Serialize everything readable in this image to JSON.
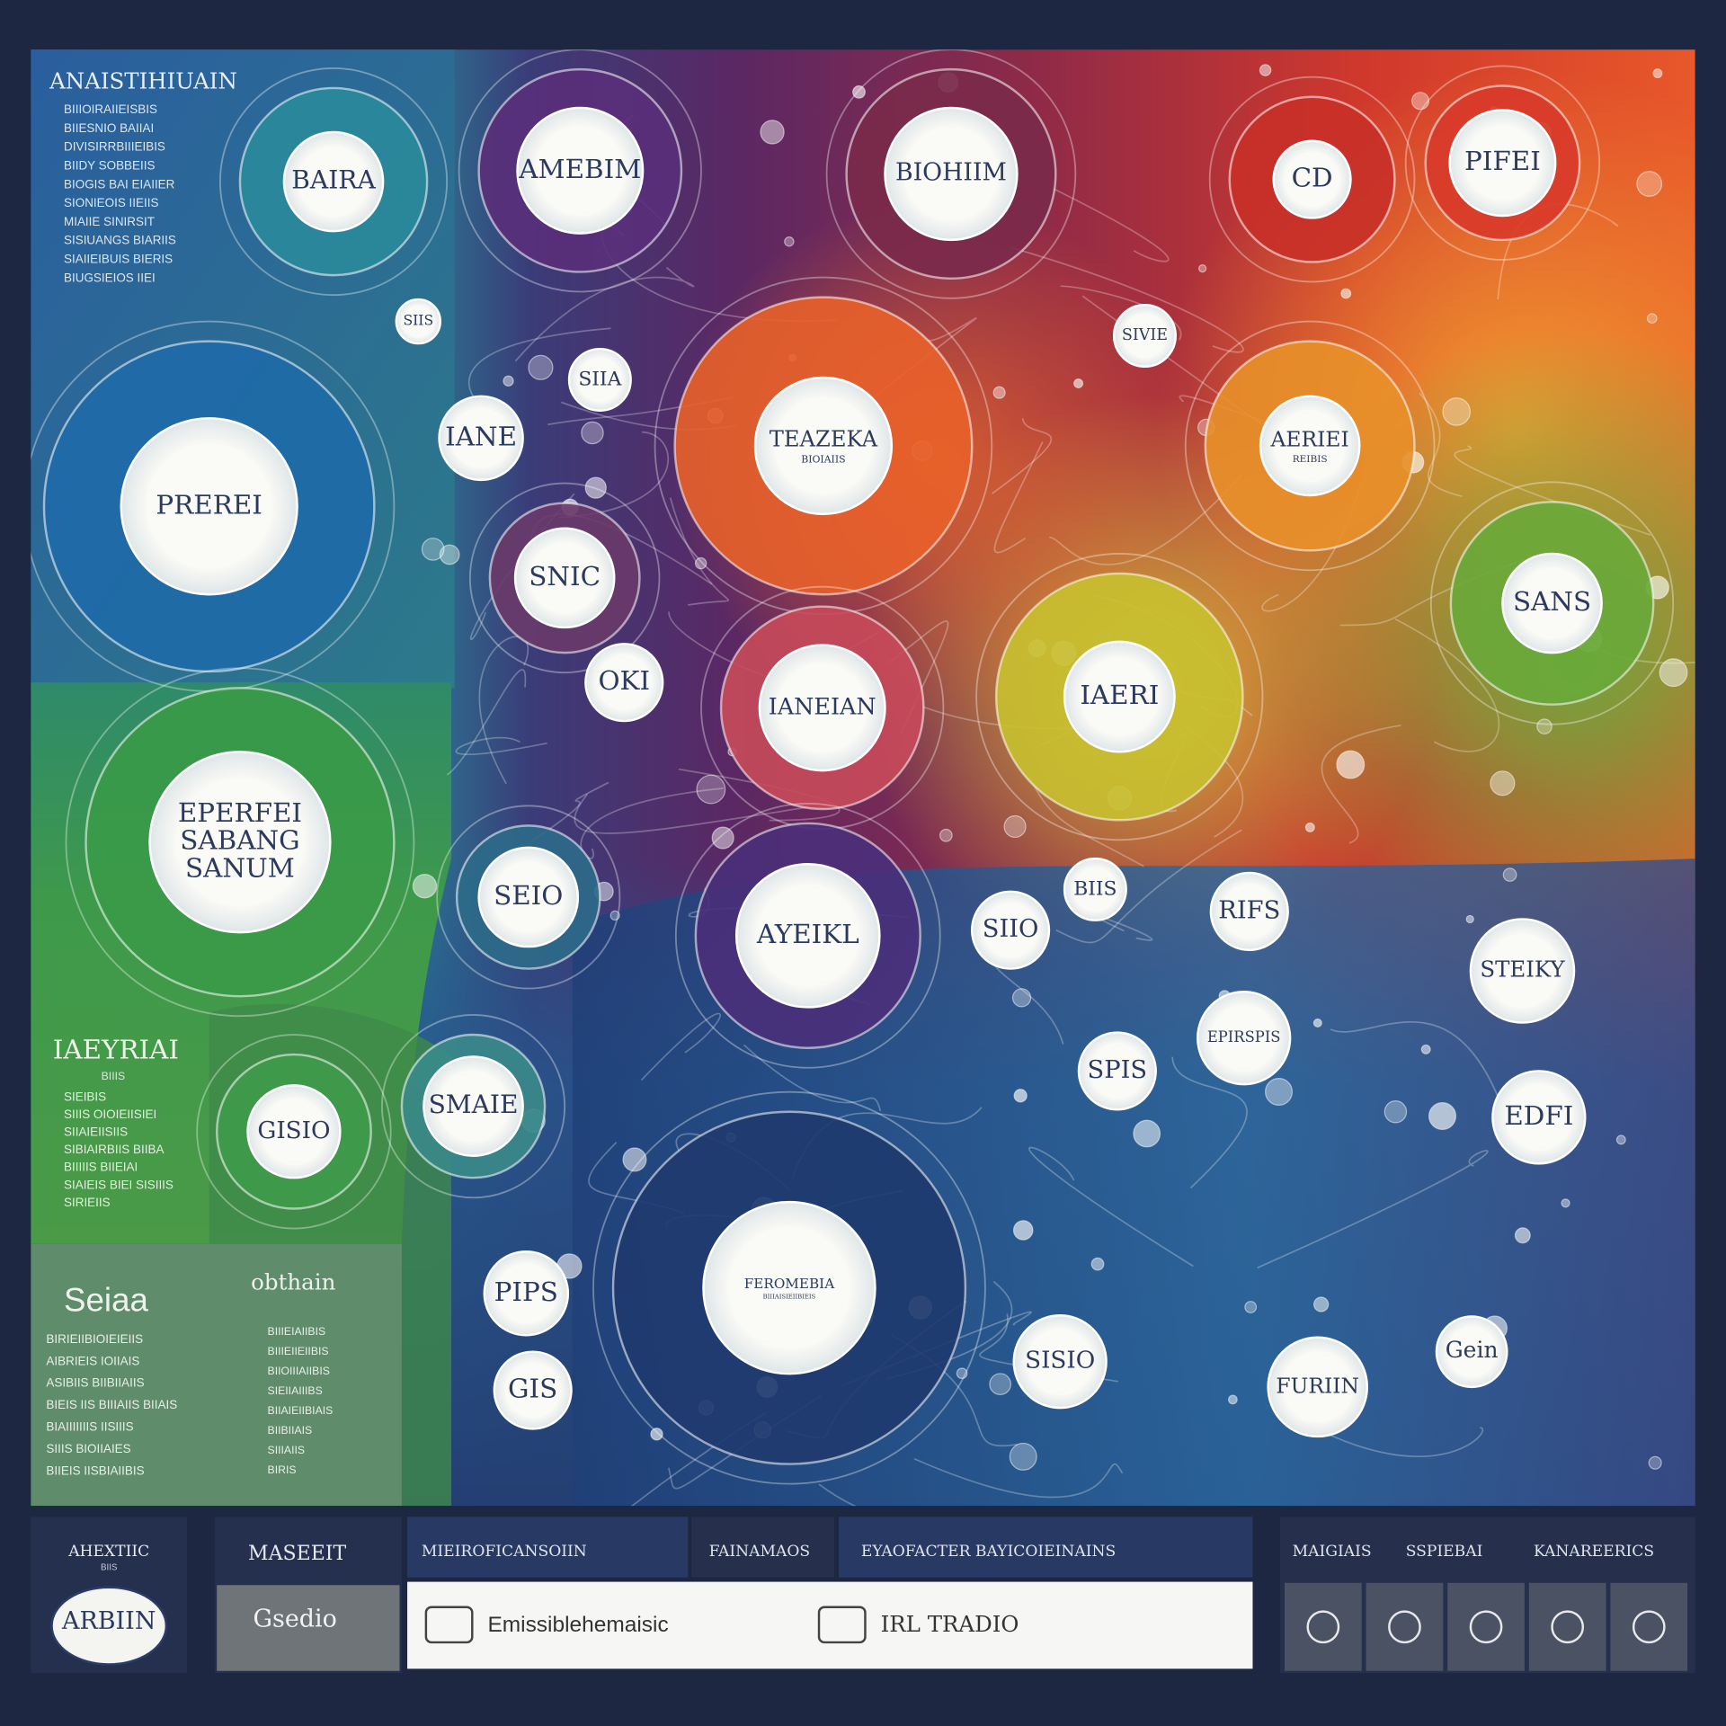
{
  "header": {
    "title": "ANAISTIHIUAIN",
    "items": [
      "BIIIOIRAIIEISBIS",
      "BIIESNIO BAIIAI",
      "DIVISIRRBIIIEIBIS",
      "BIIDY SOBBEIIS",
      "BIOGIS BAI EIAIIER",
      "SIONIEOIS IIEIIS",
      "MIAIIE SINIRSIT",
      "SISIUANGS BIARIIS",
      "SIAIIEIBUIS BIERIS",
      "BIUGSIEIOS IIEI"
    ]
  },
  "side_note": {
    "title": "IAEYRIAI",
    "subtitle": "BIIIS",
    "items": [
      "SIEIBIS",
      "SIIIS OIOIEIISIEI",
      "SIIAIEIISIIS",
      "SIBIAIRBIIS BIIBA",
      "BIIIIIS BIIEIAI",
      "SIAIEIS BIEI SISIIIS",
      "SIRIEIIS"
    ]
  },
  "legend_panel": {
    "title": "Seiaa",
    "subtitle": "obthain",
    "items_left": [
      "BIRIEIIBIOIEIEIIS",
      "AIBRIEIS IOIIAIS",
      "ASIBIIS BIIBIIAIIS",
      "BIEIS IIS BIIIAIIS BIIAIS",
      "BIAIIIIIIIS IISIIIS",
      "SIIIS BIOIIAIES",
      "BIIEIS IISBIAIIBIS"
    ],
    "items_right": [
      "BIIIEIAIIBIS",
      "BIIIEIIEIIBIS",
      "BIIOIIIAIIBIS",
      "SIEIIAIIIBS",
      "BIIAIEIIBIAIS",
      "BIIBIIAIS",
      "SIIIAIIS",
      "BIRIS"
    ]
  },
  "nodes": [
    {
      "lines": [
        "BAIRA"
      ]
    },
    {
      "lines": [
        "AMEBIM"
      ]
    },
    {
      "lines": [
        "BIOHIIM"
      ]
    },
    {
      "lines": [
        "CD"
      ]
    },
    {
      "lines": [
        "PIFEI"
      ]
    },
    {
      "lines": [
        "PREREI"
      ]
    },
    {
      "lines": [
        "TEAZEKA",
        "BIOIAIIS"
      ]
    },
    {
      "lines": [
        "IANE"
      ]
    },
    {
      "lines": [
        "SNIC"
      ]
    },
    {
      "lines": [
        "OKI"
      ]
    },
    {
      "lines": [
        "IANEIAN"
      ]
    },
    {
      "lines": [
        "AERIEI",
        "REIBIS"
      ]
    },
    {
      "lines": [
        "SANS"
      ]
    },
    {
      "lines": [
        "IAERI"
      ]
    },
    {
      "lines": [
        "EPERFEI",
        "SABANG",
        "SANUM"
      ]
    },
    {
      "lines": [
        "SEIO"
      ]
    },
    {
      "lines": [
        "AYEIKL"
      ]
    },
    {
      "lines": [
        "RIFS"
      ]
    },
    {
      "lines": [
        "STEIKY"
      ]
    },
    {
      "lines": [
        "SMAIE"
      ]
    },
    {
      "lines": [
        "GISIO"
      ]
    },
    {
      "lines": [
        "EPIRSPIS"
      ]
    },
    {
      "lines": [
        "SPIS"
      ]
    },
    {
      "lines": [
        "EDFI"
      ]
    },
    {
      "lines": [
        "FEROMEBIA",
        "BIIIAISIEIIBIEIS"
      ]
    },
    {
      "lines": [
        "SISIO"
      ]
    },
    {
      "lines": [
        "FURIIN"
      ]
    },
    {
      "lines": [
        "Gein"
      ]
    },
    {
      "lines": [
        "PIPS"
      ]
    },
    {
      "lines": [
        "GIS"
      ]
    },
    {
      "lines": [
        "SIIO"
      ]
    },
    {
      "lines": [
        "BIIS"
      ]
    },
    {
      "lines": [
        "SIVIE"
      ]
    },
    {
      "lines": [
        "SIIA"
      ]
    },
    {
      "lines": [
        "SIIS"
      ]
    }
  ],
  "footer": {
    "cards": [
      {
        "title": "AHEXTIIC",
        "subtitle": "BIIS",
        "label": "ARBIIN"
      },
      {
        "title": "MASEEIT",
        "label": "Gsedio"
      }
    ],
    "tabs": [
      "MIEIROFICANSOIIN",
      "FAINAMAOS",
      "EYAOFACTER BAYICOIEINAINS"
    ],
    "search": {
      "text": "Emissiblehemaisic",
      "button": "IRL TRADIO"
    },
    "tools": [
      "MAIGIAIS",
      "SSPIEBAI",
      "KANAREERICS"
    ]
  }
}
